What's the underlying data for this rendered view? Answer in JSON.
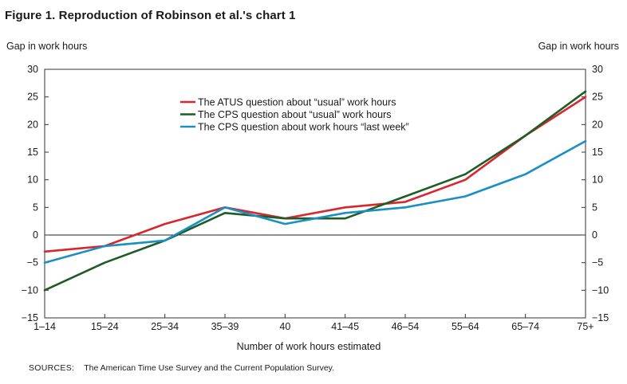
{
  "figure": {
    "title": "Figure 1. Reproduction of Robinson et al.'s chart 1",
    "source_label": "SOURCES:",
    "source_text": "The American Time Use Survey and the Current Population Survey."
  },
  "chart_data": {
    "type": "line",
    "title": "Figure 1. Reproduction of Robinson et al.'s chart 1",
    "ylabel_left": "Gap in work hours",
    "ylabel_right": "Gap in work hours",
    "xlabel": "Number of work hours estimated",
    "ylim": [
      -15,
      30
    ],
    "yticks": [
      30,
      25,
      20,
      15,
      10,
      5,
      0,
      -5,
      -10,
      -15
    ],
    "ytick_labels": [
      "30",
      "25",
      "20",
      "15",
      "10",
      "5",
      "0",
      "−5",
      "−10",
      "−15"
    ],
    "categories": [
      "1–14",
      "15–24",
      "25–34",
      "35–39",
      "40",
      "41–45",
      "46–54",
      "55–64",
      "65–74",
      "75+"
    ],
    "grid": false,
    "legend_position": "upper-center",
    "series": [
      {
        "name": "The ATUS question about “usual” work hours",
        "color": "#d9262e",
        "values": [
          -3,
          -2,
          2,
          5,
          3,
          5,
          6,
          10,
          18,
          25
        ]
      },
      {
        "name": "The CPS question about “usual” work hours",
        "color": "#1f5b24",
        "values": [
          -10,
          -5,
          -1,
          4,
          3,
          3,
          7,
          11,
          18,
          26
        ]
      },
      {
        "name": "The CPS question about work hours “last week”",
        "color": "#1a8fc4",
        "values": [
          -5,
          -2,
          -1,
          5,
          2,
          4,
          5,
          7,
          11,
          17
        ]
      }
    ]
  }
}
